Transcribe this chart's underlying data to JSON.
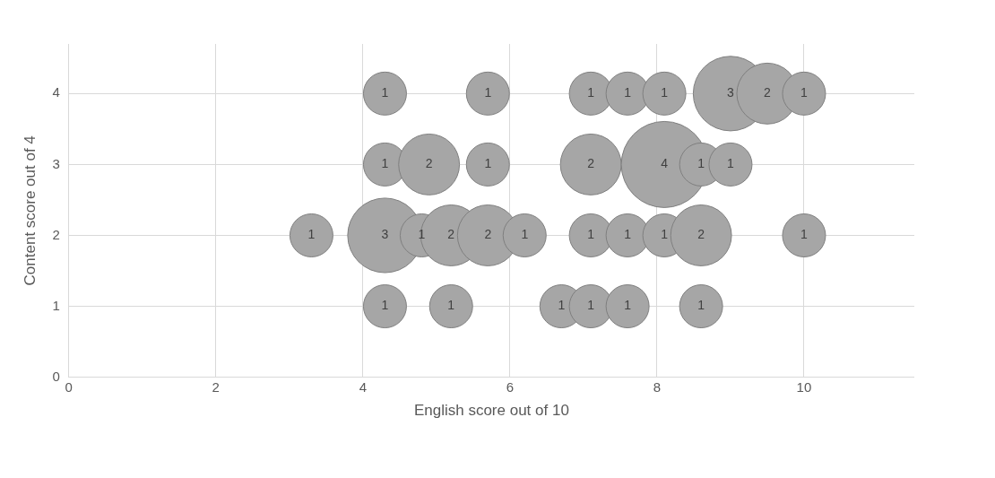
{
  "chart_data": {
    "type": "bubble",
    "xlabel": "English score out of 10",
    "ylabel": "Content score out of 4",
    "xlim": [
      0,
      11.5
    ],
    "xticks": [
      0,
      2,
      4,
      6,
      8,
      10
    ],
    "ylim": [
      0,
      4.7
    ],
    "yticks": [
      0,
      1,
      2,
      3,
      4
    ],
    "grid": true,
    "legend": false,
    "series": [
      {
        "color": "#a6a6a6",
        "x": [
          4.3,
          5.7,
          7.1,
          7.6,
          8.1,
          9.0,
          9.5,
          10,
          4.3,
          4.9,
          5.7,
          7.1,
          8.1,
          8.6,
          9.0,
          3.3,
          4.3,
          4.8,
          5.2,
          5.7,
          6.2,
          7.1,
          7.6,
          8.1,
          8.6,
          10,
          4.3,
          5.2,
          6.7,
          7.1,
          7.6,
          8.6
        ],
        "values": [
          4,
          4,
          4,
          4,
          4,
          4,
          4,
          4,
          3,
          3,
          3,
          3,
          3,
          3,
          3,
          2,
          2,
          2,
          2,
          2,
          2,
          2,
          2,
          2,
          2,
          2,
          1,
          1,
          1,
          1,
          1,
          1
        ],
        "sizes": [
          1,
          1,
          1,
          1,
          1,
          3,
          2,
          1,
          1,
          2,
          1,
          2,
          4,
          1,
          1,
          1,
          3,
          1,
          2,
          2,
          1,
          1,
          1,
          1,
          2,
          1,
          1,
          1,
          1,
          1,
          1,
          1
        ],
        "value_labels": [
          "1",
          "1",
          "1",
          "1",
          "1",
          "3",
          "2",
          "1",
          "1",
          "2",
          "1",
          "2",
          "4",
          "1",
          "1",
          "1",
          "3",
          "1",
          "2",
          "2",
          "1",
          "1",
          "1",
          "1",
          "2",
          "1",
          "1",
          "1",
          "1",
          "1",
          "1",
          "1"
        ]
      }
    ]
  }
}
